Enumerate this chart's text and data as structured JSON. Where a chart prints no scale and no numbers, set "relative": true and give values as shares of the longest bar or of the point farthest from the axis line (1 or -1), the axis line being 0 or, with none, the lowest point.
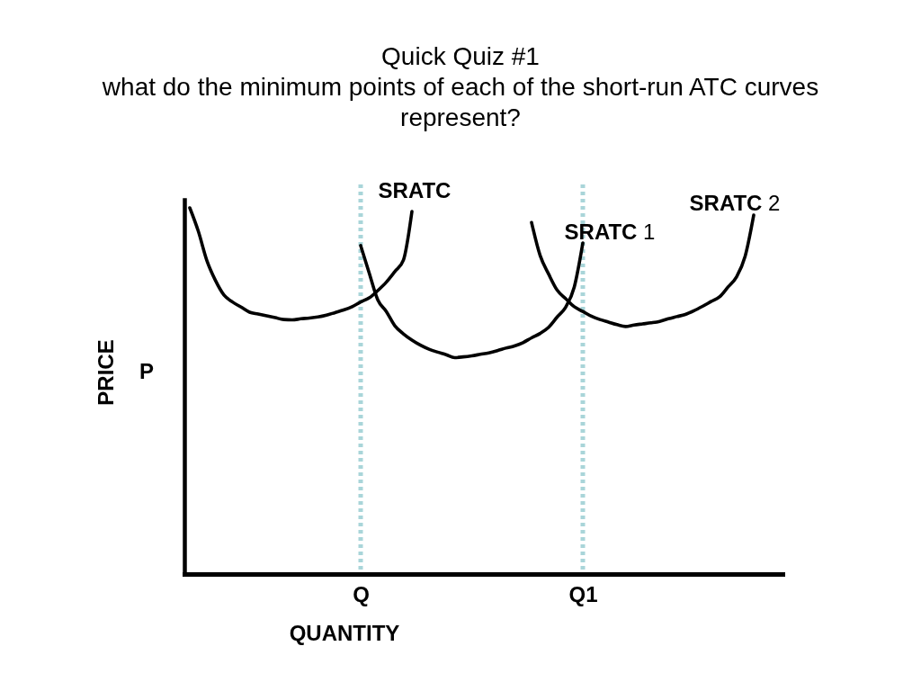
{
  "chart_data": {
    "type": "line",
    "title": "Quick Quiz #1",
    "subtitle": "what do the minimum points of each of the short-run ATC curves represent?",
    "xlabel": "QUANTITY",
    "ylabel": "PRICE",
    "relative": true,
    "line_style": "solid",
    "categories": [
      null,
      null,
      null,
      null,
      null,
      null,
      null,
      null,
      null,
      null,
      null,
      null,
      null,
      null,
      null,
      null,
      null,
      null,
      null,
      null,
      "Q",
      null,
      null,
      null,
      null,
      null,
      null,
      null,
      null,
      null,
      null,
      null,
      null,
      null,
      null,
      null,
      null,
      null,
      null,
      null,
      null,
      null,
      null,
      null,
      null,
      null,
      "Q1",
      null,
      null,
      null,
      null,
      null,
      null,
      null,
      null,
      null,
      null,
      null,
      null,
      null,
      null,
      null,
      null,
      null,
      null,
      null,
      null
    ],
    "series": [
      {
        "name": "SRATC",
        "color": "#000000",
        "values": [
          1.0,
          0.936,
          0.856,
          0.802,
          0.762,
          0.743,
          0.729,
          0.715,
          0.71,
          0.705,
          0.7,
          0.695,
          0.694,
          0.697,
          0.699,
          0.702,
          0.707,
          0.714,
          0.721,
          0.73,
          0.743,
          0.754,
          0.774,
          0.797,
          0.826,
          0.857,
          0.99,
          null,
          null,
          null,
          null,
          null,
          null,
          null,
          null,
          null,
          null,
          null,
          null,
          null,
          null,
          null,
          null,
          null,
          null,
          null,
          null,
          null,
          null,
          null,
          null,
          null,
          null,
          null,
          null,
          null,
          null,
          null,
          null,
          null,
          null,
          null,
          null,
          null,
          null,
          null,
          null
        ]
      },
      {
        "name": "SRATC 1",
        "color": "#000000",
        "values": [
          null,
          null,
          null,
          null,
          null,
          null,
          null,
          null,
          null,
          null,
          null,
          null,
          null,
          null,
          null,
          null,
          null,
          null,
          null,
          null,
          0.897,
          0.822,
          0.749,
          0.717,
          0.678,
          0.656,
          0.639,
          0.625,
          0.614,
          0.606,
          0.599,
          0.591,
          0.593,
          0.596,
          0.6,
          0.604,
          0.61,
          0.617,
          0.623,
          0.632,
          0.645,
          0.657,
          0.674,
          0.702,
          0.729,
          0.784,
          0.904,
          null,
          null,
          null,
          null,
          null,
          null,
          null,
          null,
          null,
          null,
          null,
          null,
          null,
          null,
          null,
          null,
          null,
          null,
          null,
          null
        ]
      },
      {
        "name": "SRATC 2",
        "color": "#000000",
        "values": [
          null,
          null,
          null,
          null,
          null,
          null,
          null,
          null,
          null,
          null,
          null,
          null,
          null,
          null,
          null,
          null,
          null,
          null,
          null,
          null,
          null,
          null,
          null,
          null,
          null,
          null,
          null,
          null,
          null,
          null,
          null,
          null,
          null,
          null,
          null,
          null,
          null,
          null,
          null,
          null,
          0.96,
          0.87,
          0.819,
          0.775,
          0.752,
          0.73,
          0.717,
          0.704,
          0.695,
          0.688,
          0.681,
          0.676,
          0.68,
          0.683,
          0.686,
          0.69,
          0.697,
          0.703,
          0.709,
          0.719,
          0.731,
          0.744,
          0.757,
          0.784,
          0.812,
          0.868,
          0.98
        ]
      }
    ],
    "ref_lines": [
      {
        "axis": "x",
        "value": "Q",
        "color": "#a9d5d9",
        "line_style": "dotted"
      },
      {
        "axis": "x",
        "value": "Q1",
        "color": "#a9d5d9",
        "line_style": "dotted"
      }
    ],
    "annotations": [
      "P"
    ]
  }
}
